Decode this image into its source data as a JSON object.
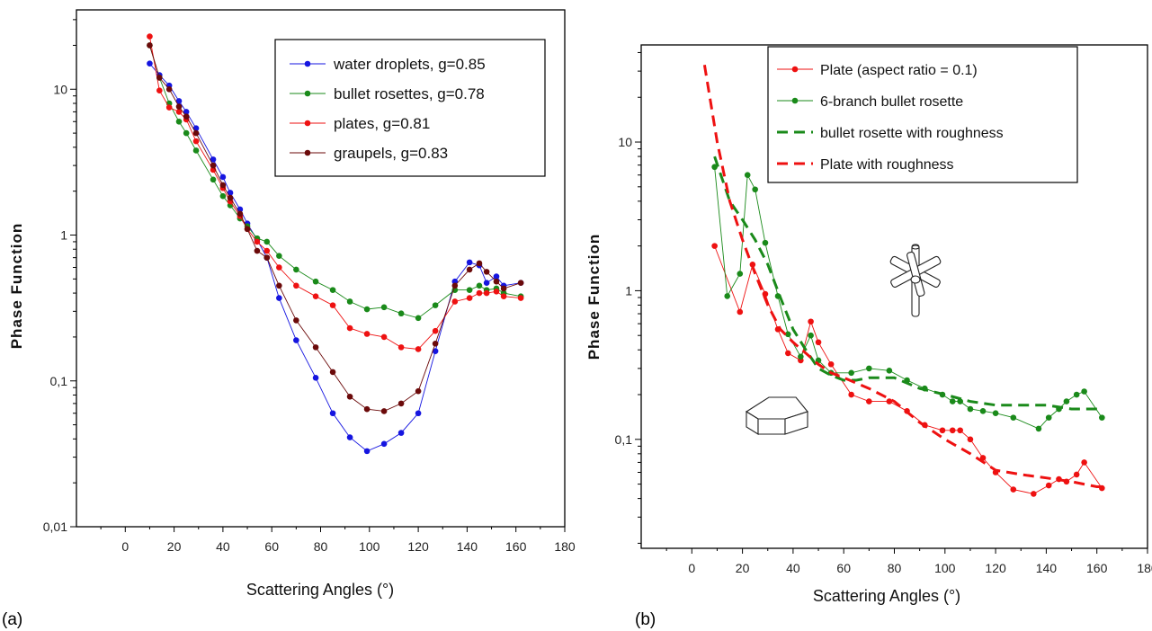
{
  "chart_data": [
    {
      "panel_label": "(a)",
      "type": "line",
      "xlabel": "Scattering Angles (°)",
      "ylabel": "Phase Function",
      "xlim": [
        -20,
        180
      ],
      "ylim": [
        0.01,
        35
      ],
      "yscale": "log",
      "x_ticks": [
        0,
        20,
        40,
        60,
        80,
        100,
        120,
        140,
        160,
        180
      ],
      "x_tick_labels": [
        "0",
        "20",
        "40",
        "60",
        "80",
        "100",
        "120",
        "140",
        "160",
        "180"
      ],
      "y_ticks": [
        0.01,
        0.1,
        1,
        10
      ],
      "y_tick_labels": [
        "0,01",
        "0,1",
        "1",
        "10"
      ],
      "legend_position": "top-right",
      "series": [
        {
          "name": "water droplets, g=0.85",
          "color": "#1515e0",
          "style": "solid-markers",
          "x": [
            10,
            14,
            18,
            22,
            25,
            29,
            36,
            40,
            43,
            47,
            50,
            54,
            58,
            63,
            70,
            78,
            85,
            92,
            99,
            106,
            113,
            120,
            127,
            135,
            141,
            145,
            148,
            152,
            155,
            162
          ],
          "y": [
            15,
            12.5,
            10.6,
            8.3,
            7,
            5.4,
            3.3,
            2.5,
            1.95,
            1.5,
            1.2,
            0.93,
            0.7,
            0.37,
            0.19,
            0.105,
            0.06,
            0.041,
            0.033,
            0.037,
            0.044,
            0.06,
            0.16,
            0.48,
            0.65,
            0.62,
            0.47,
            0.52,
            0.45,
            0.47
          ]
        },
        {
          "name": "bullet rosettes, g=0.78",
          "color": "#1a8a1a",
          "style": "solid-markers",
          "x": [
            10,
            14,
            18,
            22,
            25,
            29,
            36,
            40,
            43,
            47,
            50,
            54,
            58,
            63,
            70,
            78,
            85,
            92,
            99,
            106,
            113,
            120,
            127,
            135,
            141,
            145,
            148,
            152,
            155,
            162
          ],
          "y": [
            20,
            12,
            8,
            6,
            5,
            3.8,
            2.4,
            1.85,
            1.6,
            1.3,
            1.15,
            0.95,
            0.9,
            0.72,
            0.58,
            0.48,
            0.42,
            0.35,
            0.31,
            0.32,
            0.29,
            0.27,
            0.33,
            0.42,
            0.42,
            0.45,
            0.42,
            0.43,
            0.4,
            0.38
          ]
        },
        {
          "name": "plates, g=0.81",
          "color": "#ee1111",
          "style": "solid-markers",
          "x": [
            10,
            14,
            18,
            22,
            25,
            29,
            36,
            40,
            43,
            47,
            50,
            54,
            58,
            63,
            70,
            78,
            85,
            92,
            99,
            106,
            113,
            120,
            127,
            135,
            141,
            145,
            148,
            152,
            155,
            162
          ],
          "y": [
            23,
            9.8,
            7.5,
            7,
            6.2,
            4.4,
            2.8,
            2.1,
            1.7,
            1.35,
            1.1,
            0.9,
            0.78,
            0.6,
            0.45,
            0.38,
            0.33,
            0.23,
            0.21,
            0.2,
            0.17,
            0.165,
            0.22,
            0.35,
            0.37,
            0.4,
            0.4,
            0.41,
            0.38,
            0.37
          ]
        },
        {
          "name": "graupels, g=0.83",
          "color": "#6b0a0a",
          "style": "solid-markers",
          "x": [
            10,
            14,
            18,
            22,
            25,
            29,
            36,
            40,
            43,
            47,
            50,
            54,
            58,
            63,
            70,
            78,
            85,
            92,
            99,
            106,
            113,
            120,
            127,
            135,
            141,
            145,
            148,
            152,
            155,
            162
          ],
          "y": [
            20,
            12,
            10,
            7.6,
            6.5,
            5,
            3,
            2.2,
            1.8,
            1.4,
            1.1,
            0.78,
            0.7,
            0.45,
            0.26,
            0.17,
            0.115,
            0.078,
            0.064,
            0.062,
            0.07,
            0.085,
            0.18,
            0.45,
            0.58,
            0.64,
            0.56,
            0.48,
            0.43,
            0.47
          ]
        }
      ]
    },
    {
      "panel_label": "(b)",
      "type": "line",
      "xlabel": "Scattering Angles (°)",
      "ylabel": "Phase Function",
      "xlim": [
        -20,
        180
      ],
      "ylim": [
        0.0185,
        45
      ],
      "yscale": "log",
      "x_ticks": [
        0,
        20,
        40,
        60,
        80,
        100,
        120,
        140,
        160,
        180
      ],
      "x_tick_labels": [
        "0",
        "20",
        "40",
        "60",
        "80",
        "100",
        "120",
        "140",
        "160",
        "180"
      ],
      "y_ticks": [
        0.1,
        1,
        10
      ],
      "y_tick_labels": [
        "0,1",
        "1",
        "10"
      ],
      "legend_position": "top-right",
      "insets": [
        "bullet-rosette-sketch",
        "hexagonal-plate-sketch"
      ],
      "series": [
        {
          "name": "Plate (aspect ratio = 0.1)",
          "color": "#ee1111",
          "style": "solid-markers",
          "x": [
            9,
            19,
            24,
            29,
            34,
            38,
            43,
            47,
            50,
            55,
            63,
            70,
            78,
            85,
            92,
            99,
            103,
            106,
            110,
            115,
            120,
            127,
            135,
            141,
            145,
            148,
            152,
            155,
            162
          ],
          "y": [
            2,
            0.72,
            1.5,
            0.95,
            0.55,
            0.38,
            0.34,
            0.62,
            0.45,
            0.32,
            0.2,
            0.18,
            0.18,
            0.155,
            0.125,
            0.115,
            0.115,
            0.115,
            0.1,
            0.075,
            0.06,
            0.046,
            0.043,
            0.049,
            0.054,
            0.052,
            0.058,
            0.07,
            0.047
          ]
        },
        {
          "name": "6-branch bullet rosette",
          "color": "#1a8a1a",
          "style": "solid-markers",
          "x": [
            9,
            14,
            19,
            22,
            25,
            29,
            34,
            38,
            43,
            47,
            50,
            55,
            63,
            70,
            78,
            85,
            92,
            99,
            103,
            106,
            110,
            115,
            120,
            127,
            137,
            141,
            145,
            148,
            152,
            155,
            162
          ],
          "y": [
            6.8,
            0.92,
            1.3,
            6,
            4.8,
            2.1,
            0.92,
            0.51,
            0.36,
            0.5,
            0.34,
            0.28,
            0.28,
            0.3,
            0.29,
            0.25,
            0.22,
            0.2,
            0.18,
            0.18,
            0.16,
            0.155,
            0.15,
            0.14,
            0.118,
            0.14,
            0.16,
            0.18,
            0.2,
            0.21,
            0.14
          ]
        },
        {
          "name": "bullet rosette with roughness",
          "color": "#1a8a1a",
          "style": "dashed",
          "x": [
            9,
            15,
            20,
            25,
            30,
            35,
            40,
            45,
            50,
            55,
            60,
            65,
            70,
            80,
            90,
            100,
            110,
            120,
            130,
            140,
            150,
            155,
            162
          ],
          "y": [
            8,
            4,
            3,
            2.2,
            1.5,
            0.9,
            0.55,
            0.4,
            0.3,
            0.27,
            0.25,
            0.25,
            0.26,
            0.26,
            0.22,
            0.2,
            0.18,
            0.17,
            0.17,
            0.17,
            0.16,
            0.16,
            0.16
          ]
        },
        {
          "name": "Plate with roughness",
          "color": "#ee1111",
          "style": "dashed",
          "x": [
            5,
            10,
            15,
            20,
            25,
            30,
            35,
            40,
            45,
            50,
            55,
            60,
            70,
            80,
            90,
            100,
            110,
            120,
            130,
            140,
            150,
            160,
            162
          ],
          "y": [
            33,
            10,
            4,
            2.2,
            1.3,
            0.8,
            0.55,
            0.45,
            0.38,
            0.32,
            0.28,
            0.26,
            0.22,
            0.18,
            0.13,
            0.1,
            0.08,
            0.062,
            0.058,
            0.055,
            0.052,
            0.048,
            0.048
          ]
        }
      ]
    }
  ]
}
